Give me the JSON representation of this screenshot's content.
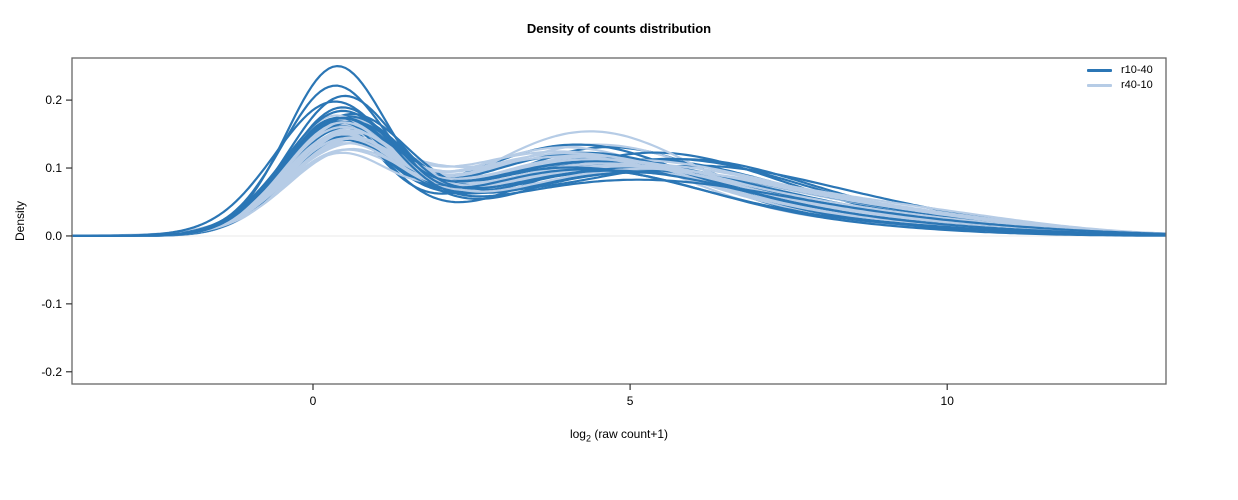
{
  "title": "Density of counts distribution",
  "chart_data": {
    "type": "line",
    "subtype": "overlaid-density-curves",
    "title": "Density of counts distribution",
    "xlabel_parts": {
      "prefix": "log",
      "sub": "2",
      "suffix": " (raw count+1)"
    },
    "ylabel": "Density",
    "xlim": [
      -3.8,
      13.45
    ],
    "ylim": [
      -0.218,
      0.262
    ],
    "x_ticks": [
      0,
      5,
      10
    ],
    "x_tick_labels": [
      "0",
      "5",
      "10"
    ],
    "y_ticks": [
      0.2,
      0.1,
      0.0,
      -0.1,
      -0.2
    ],
    "y_tick_labels": [
      "0.2",
      "0.1",
      "0.0",
      "-0.1",
      "-0.2"
    ],
    "grid": false,
    "zero_line_color": "#e9e9e9",
    "frame_color": "#666666",
    "legend_position": "top-right",
    "series_groups": [
      {
        "name": "r10-40",
        "color": "#2b76b5"
      },
      {
        "name": "r40-10",
        "color": "#b6cce6"
      }
    ],
    "curve_model": "gaussian_mixture_components_[weight,mean,sd]",
    "curves": [
      {
        "g": 1,
        "c": [
          [
            0.238,
            0.45,
            0.95
          ],
          [
            0.652,
            4.0,
            2.3
          ],
          [
            0.11,
            8.5,
            2.4
          ]
        ]
      },
      {
        "g": 0,
        "c": [
          [
            0.321,
            0.25,
            0.8
          ],
          [
            0.589,
            4.6,
            1.85
          ],
          [
            0.09,
            8.6,
            2.4
          ]
        ]
      },
      {
        "g": 1,
        "c": [
          [
            0.248,
            0.4,
            0.9
          ],
          [
            0.642,
            4.4,
            1.95
          ],
          [
            0.11,
            8.8,
            2.3
          ]
        ]
      },
      {
        "g": 0,
        "c": [
          [
            0.293,
            0.3,
            0.78
          ],
          [
            0.627,
            4.1,
            1.9
          ],
          [
            0.08,
            8.2,
            2.3
          ]
        ]
      },
      {
        "g": 1,
        "c": [
          [
            0.256,
            0.35,
            0.85
          ],
          [
            0.634,
            3.8,
            2.1
          ],
          [
            0.11,
            8.2,
            2.5
          ]
        ]
      },
      {
        "g": 0,
        "c": [
          [
            0.291,
            0.25,
            0.8
          ],
          [
            0.619,
            4.6,
            2.4
          ],
          [
            0.09,
            8.9,
            2.2
          ]
        ]
      },
      {
        "g": 1,
        "c": [
          [
            0.3,
            0.5,
            0.92
          ],
          [
            0.59,
            4.6,
            2.3
          ],
          [
            0.11,
            9.0,
            2.3
          ]
        ]
      },
      {
        "g": 0,
        "c": [
          [
            0.282,
            0.3,
            0.75
          ],
          [
            0.628,
            4.4,
            2.25
          ],
          [
            0.09,
            8.4,
            2.3
          ]
        ]
      },
      {
        "g": 1,
        "c": [
          [
            0.309,
            0.4,
            0.88
          ],
          [
            0.581,
            4.2,
            2.2
          ],
          [
            0.11,
            8.6,
            2.4
          ]
        ]
      },
      {
        "g": 0,
        "c": [
          [
            0.309,
            0.4,
            0.88
          ],
          [
            0.611,
            4.5,
            2.3
          ],
          [
            0.08,
            8.8,
            2.1
          ]
        ]
      },
      {
        "g": 1,
        "c": [
          [
            0.308,
            0.35,
            0.82
          ],
          [
            0.582,
            3.9,
            1.85
          ],
          [
            0.11,
            8.0,
            2.6
          ]
        ]
      },
      {
        "g": 0,
        "c": [
          [
            0.305,
            0.45,
            0.9
          ],
          [
            0.605,
            5.1,
            2.2
          ],
          [
            0.09,
            9.2,
            2.1
          ]
        ]
      },
      {
        "g": 1,
        "c": [
          [
            0.341,
            0.45,
            0.85
          ],
          [
            0.549,
            4.5,
            2.1
          ],
          [
            0.11,
            8.9,
            2.2
          ]
        ]
      },
      {
        "g": 0,
        "c": [
          [
            0.32,
            0.35,
            0.85
          ],
          [
            0.6,
            5.3,
            2.0
          ],
          [
            0.08,
            9.0,
            2.0
          ]
        ]
      },
      {
        "g": 1,
        "c": [
          [
            0.286,
            0.55,
            0.95
          ],
          [
            0.604,
            4.8,
            2.4
          ],
          [
            0.11,
            9.3,
            2.1
          ]
        ]
      },
      {
        "g": 0,
        "c": [
          [
            0.277,
            0.35,
            0.82
          ],
          [
            0.1,
            2.2,
            1.2
          ],
          [
            0.533,
            5.8,
            1.95
          ],
          [
            0.09,
            9.5,
            2.0
          ]
        ]
      },
      {
        "g": 1,
        "c": [
          [
            0.261,
            0.3,
            0.8
          ],
          [
            0.629,
            4.1,
            2.15
          ],
          [
            0.11,
            8.4,
            2.4
          ]
        ]
      },
      {
        "g": 0,
        "c": [
          [
            0.334,
            0.45,
            0.92
          ],
          [
            0.576,
            4.8,
            2.2
          ],
          [
            0.09,
            9.1,
            2.3
          ]
        ]
      },
      {
        "g": 1,
        "c": [
          [
            0.234,
            0.35,
            0.85
          ],
          [
            0.646,
            4.3,
            1.75
          ],
          [
            0.12,
            8.1,
            2.7
          ]
        ]
      },
      {
        "g": 0,
        "c": [
          [
            0.333,
            0.5,
            0.95
          ],
          [
            0.577,
            5.5,
            2.1
          ],
          [
            0.09,
            9.3,
            2.2
          ]
        ]
      },
      {
        "g": 1,
        "c": [
          [
            0.316,
            0.5,
            0.9
          ],
          [
            0.564,
            4.7,
            2.25
          ],
          [
            0.12,
            9.1,
            2.2
          ]
        ]
      },
      {
        "g": 0,
        "c": [
          [
            0.277,
            0.4,
            0.85
          ],
          [
            0.08,
            2.3,
            1.1
          ],
          [
            0.553,
            5.9,
            2.2
          ],
          [
            0.09,
            9.6,
            1.9
          ]
        ]
      },
      {
        "g": 1,
        "c": [
          [
            0.327,
            0.4,
            0.87
          ],
          [
            0.553,
            4.3,
            2.1
          ],
          [
            0.12,
            8.7,
            2.3
          ]
        ]
      },
      {
        "g": 0,
        "c": [
          [
            0.35,
            0.5,
            0.9
          ],
          [
            0.56,
            4.7,
            2.4
          ],
          [
            0.09,
            9.4,
            2.2
          ]
        ]
      },
      {
        "g": 1,
        "c": [
          [
            0.271,
            0.45,
            0.9
          ],
          [
            0.609,
            5.0,
            2.35
          ],
          [
            0.12,
            9.4,
            2.0
          ]
        ]
      },
      {
        "g": 0,
        "c": [
          [
            0.353,
            0.35,
            0.88
          ],
          [
            0.557,
            4.9,
            2.3
          ],
          [
            0.09,
            9.0,
            2.2
          ]
        ]
      },
      {
        "g": 1,
        "c": [
          [
            0.31,
            0.55,
            0.95
          ],
          [
            0.57,
            5.2,
            2.4
          ],
          [
            0.12,
            9.6,
            1.9
          ]
        ]
      },
      {
        "g": 0,
        "c": [
          [
            0.349,
            0.4,
            0.82
          ],
          [
            0.561,
            4.3,
            2.1
          ],
          [
            0.09,
            8.6,
            2.1
          ]
        ]
      },
      {
        "g": 1,
        "c": [
          [
            0.291,
            0.35,
            0.83
          ],
          [
            0.589,
            4.0,
            2.05
          ],
          [
            0.12,
            8.3,
            2.5
          ]
        ]
      },
      {
        "g": 0,
        "c": [
          [
            0.393,
            0.55,
            0.95
          ],
          [
            0.527,
            5.0,
            2.3
          ],
          [
            0.08,
            9.2,
            2.0
          ]
        ]
      },
      {
        "g": 1,
        "c": [
          [
            0.331,
            0.45,
            0.88
          ],
          [
            0.549,
            4.6,
            2.2
          ],
          [
            0.12,
            9.0,
            2.2
          ]
        ]
      },
      {
        "g": 0,
        "c": [
          [
            0.361,
            0.55,
            0.93
          ],
          [
            0.549,
            5.2,
            2.35
          ],
          [
            0.09,
            9.4,
            2.0
          ]
        ]
      },
      {
        "g": 1,
        "c": [
          [
            0.321,
            0.3,
            0.8
          ],
          [
            0.559,
            4.2,
            2.0
          ],
          [
            0.12,
            8.5,
            2.4
          ]
        ]
      },
      {
        "g": 0,
        "c": [
          [
            0.375,
            0.4,
            0.88
          ],
          [
            0.545,
            4.4,
            1.95
          ],
          [
            0.08,
            8.5,
            2.2
          ]
        ]
      },
      {
        "g": 1,
        "c": [
          [
            0.253,
            0.5,
            0.92
          ],
          [
            0.627,
            4.9,
            2.3
          ],
          [
            0.12,
            9.2,
            2.1
          ]
        ]
      },
      {
        "g": 0,
        "c": [
          [
            0.32,
            0.3,
            0.85
          ],
          [
            0.59,
            4.2,
            2.0
          ],
          [
            0.09,
            8.0,
            2.5
          ]
        ]
      },
      {
        "g": 1,
        "c": [
          [
            0.262,
            0.4,
            0.87
          ],
          [
            0.618,
            4.4,
            2.25
          ],
          [
            0.12,
            8.8,
            2.3
          ]
        ]
      },
      {
        "g": 0,
        "c": [
          [
            0.33,
            0.38,
            0.86
          ],
          [
            0.58,
            4.35,
            2.15
          ],
          [
            0.09,
            8.7,
            2.2
          ]
        ]
      },
      {
        "g": 1,
        "c": [
          [
            0.274,
            0.35,
            0.84
          ],
          [
            0.606,
            3.9,
            2.15
          ],
          [
            0.12,
            8.2,
            2.6
          ]
        ]
      },
      {
        "g": 0,
        "c": [
          [
            0.35,
            0.42,
            0.89
          ],
          [
            0.56,
            4.75,
            2.3
          ],
          [
            0.09,
            9.1,
            2.15
          ]
        ]
      },
      {
        "g": 1,
        "c": [
          [
            0.323,
            0.55,
            0.92
          ],
          [
            0.557,
            5.1,
            2.3
          ],
          [
            0.12,
            9.5,
            2.0
          ]
        ]
      },
      {
        "g": 1,
        "c": [
          [
            0.323,
            0.4,
            0.86
          ],
          [
            0.557,
            4.5,
            2.15
          ],
          [
            0.12,
            8.9,
            2.25
          ]
        ]
      },
      {
        "g": 1,
        "c": [
          [
            0.27,
            0.38,
            0.86
          ],
          [
            0.6,
            4.25,
            2.2
          ],
          [
            0.13,
            8.6,
            2.35
          ]
        ]
      },
      {
        "g": 1,
        "c": [
          [
            0.3,
            0.48,
            0.9
          ],
          [
            0.58,
            4.55,
            2.3
          ],
          [
            0.12,
            9.0,
            2.15
          ]
        ]
      },
      {
        "g": 1,
        "c": [
          [
            0.26,
            0.33,
            0.84
          ],
          [
            0.62,
            3.95,
            2.1
          ],
          [
            0.12,
            8.35,
            2.5
          ]
        ]
      },
      {
        "g": 1,
        "c": [
          [
            0.29,
            0.52,
            0.93
          ],
          [
            0.59,
            4.85,
            2.35
          ],
          [
            0.12,
            9.25,
            2.05
          ]
        ]
      },
      {
        "g": 0,
        "c": [
          [
            0.459,
            0.35,
            0.78
          ],
          [
            0.481,
            4.2,
            2.0
          ],
          [
            0.06,
            8.0,
            2.0
          ]
        ]
      },
      {
        "g": 0,
        "c": [
          [
            0.401,
            0.3,
            0.8
          ],
          [
            0.519,
            4.0,
            2.1
          ],
          [
            0.08,
            8.3,
            2.2
          ]
        ]
      },
      {
        "g": 0,
        "c": [
          [
            0.405,
            0.45,
            0.85
          ],
          [
            0.515,
            4.6,
            2.2
          ],
          [
            0.08,
            8.8,
            2.3
          ]
        ]
      },
      {
        "g": 0,
        "c": [
          [
            0.427,
            0.3,
            0.92
          ],
          [
            0.473,
            4.9,
            2.4
          ],
          [
            0.1,
            9.0,
            2.4
          ]
        ]
      }
    ]
  }
}
